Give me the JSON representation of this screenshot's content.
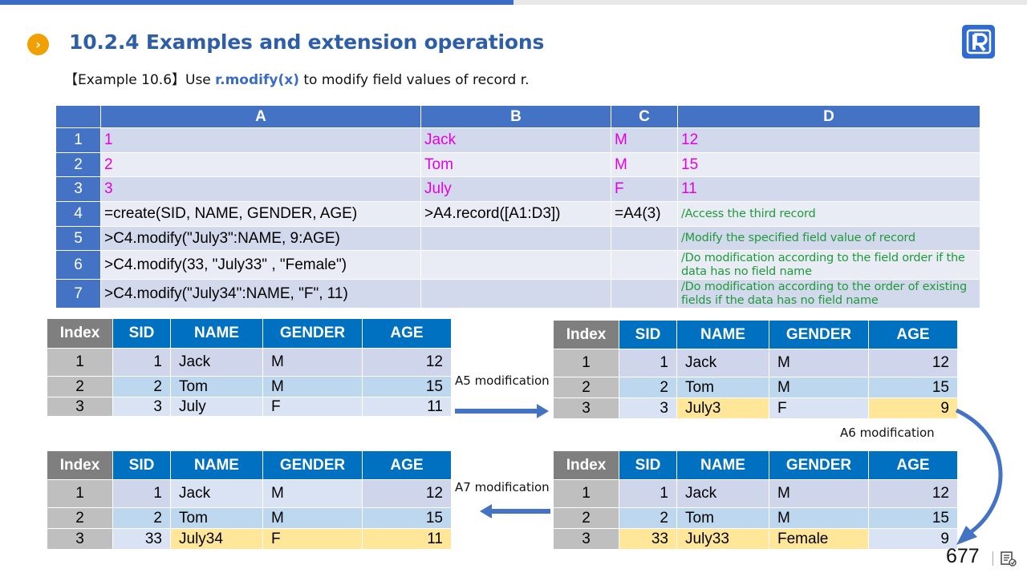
{
  "heading": "10.2.4 Examples and extension operations",
  "example": {
    "prefix": "【Example 10.6】Use ",
    "code": "r.modify(x)",
    "suffix": " to modify field values of record r."
  },
  "page_number": "677",
  "grid": {
    "columns": [
      "A",
      "B",
      "C",
      "D"
    ],
    "rows": [
      {
        "num": "1",
        "a": "1",
        "b": "Jack",
        "c": "M",
        "d": "12"
      },
      {
        "num": "2",
        "a": "2",
        "b": "Tom",
        "c": "M",
        "d": "15"
      },
      {
        "num": "3",
        "a": "3",
        "b": "July",
        "c": "F",
        "d": "11"
      },
      {
        "num": "4",
        "a": "=create(SID, NAME,  GENDER, AGE)",
        "b": ">A4.record([A1:D3])",
        "c": "=A4(3)",
        "d": "/Access the third record"
      },
      {
        "num": "5",
        "a": ">C4.modify(\"July3\":NAME,  9:AGE)",
        "b": "",
        "c": "",
        "d": "/Modify the specified field value of record"
      },
      {
        "num": "6",
        "a": ">C4.modify(33, \"July33\" , \"Female\")",
        "b": "",
        "c": "",
        "d": "/Do modification according to the field order if the data has no field name"
      },
      {
        "num": "7",
        "a": ">C4.modify(\"July34\":NAME,  \"F\", 11)",
        "b": "",
        "c": "",
        "d": "/Do modification according to the order of existing fields if the data has no field name"
      }
    ]
  },
  "record_headers": [
    "Index",
    "SID",
    "NAME",
    "GENDER",
    "AGE"
  ],
  "tables": {
    "original": [
      [
        "1",
        "1",
        "Jack",
        "M",
        "12"
      ],
      [
        "2",
        "2",
        "Tom",
        "M",
        "15"
      ],
      [
        "3",
        "3",
        "July",
        "F",
        "11"
      ]
    ],
    "after_a5": [
      [
        "1",
        "1",
        "Jack",
        "M",
        "12"
      ],
      [
        "2",
        "2",
        "Tom",
        "M",
        "15"
      ],
      [
        "3",
        "3",
        "July3",
        "F",
        "9"
      ]
    ],
    "after_a6": [
      [
        "1",
        "1",
        "Jack",
        "M",
        "12"
      ],
      [
        "2",
        "2",
        "Tom",
        "M",
        "15"
      ],
      [
        "3",
        "33",
        "July33",
        "Female",
        "9"
      ]
    ],
    "after_a7": [
      [
        "1",
        "1",
        "Jack",
        "M",
        "12"
      ],
      [
        "2",
        "2",
        "Tom",
        "M",
        "15"
      ],
      [
        "3",
        "33",
        "July34",
        "F",
        "11"
      ]
    ]
  },
  "labels": {
    "a5": "A5 modification",
    "a6": "A6 modification",
    "a7": "A7 modification"
  },
  "colors": {
    "accent": "#2f5ea8",
    "header_blue": "#0070c0",
    "highlight": "#ffe699",
    "code_magenta": "#e300e3",
    "comment_green": "#1f9a3a"
  },
  "icons": [
    "chevron-right-icon",
    "raqsoft-logo",
    "slide-notes-icon"
  ]
}
